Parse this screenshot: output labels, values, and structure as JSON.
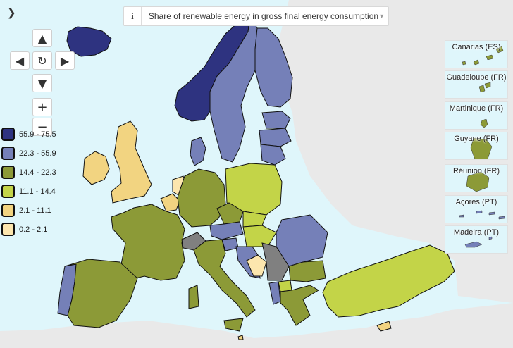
{
  "header": {
    "menu_icon": "chevron-right-icon",
    "info_icon_text": "i",
    "indicator_label": "Share of renewable energy in gross final energy consumption",
    "dropdown_icon": "caret-down-icon"
  },
  "controls": {
    "pan_up_icon": "arrow-up-icon",
    "pan_left_icon": "arrow-left-icon",
    "reset_icon": "refresh-icon",
    "pan_right_icon": "arrow-right-icon",
    "pan_down_icon": "arrow-down-icon",
    "zoom_in_label": "+",
    "zoom_out_label": "−"
  },
  "colors": {
    "sea": "#dff6fb",
    "land_outside": "#e9e9e9",
    "no_data": "#808080",
    "border": "#111111"
  },
  "legend": {
    "items": [
      {
        "label": "55.9 - 75.5",
        "color": "#2e3380"
      },
      {
        "label": "22.3 - 55.9",
        "color": "#7580b8"
      },
      {
        "label": "14.4 - 22.3",
        "color": "#8c9a37"
      },
      {
        "label": "11.1 - 14.4",
        "color": "#c3d448"
      },
      {
        "label": "2.1 - 11.1",
        "color": "#f2d481"
      },
      {
        "label": "0.2 - 2.1",
        "color": "#fce6ae"
      }
    ]
  },
  "insets": [
    {
      "label": "Canarias (ES)",
      "color": "#8c9a37"
    },
    {
      "label": "Guadeloupe (FR)",
      "color": "#8c9a37"
    },
    {
      "label": "Martinique (FR)",
      "color": "#8c9a37"
    },
    {
      "label": "Guyane (FR)",
      "color": "#8c9a37"
    },
    {
      "label": "Réunion (FR)",
      "color": "#8c9a37"
    },
    {
      "label": "Açores (PT)",
      "color": "#7580b8"
    },
    {
      "label": "Madeira (PT)",
      "color": "#7580b8"
    }
  ]
}
